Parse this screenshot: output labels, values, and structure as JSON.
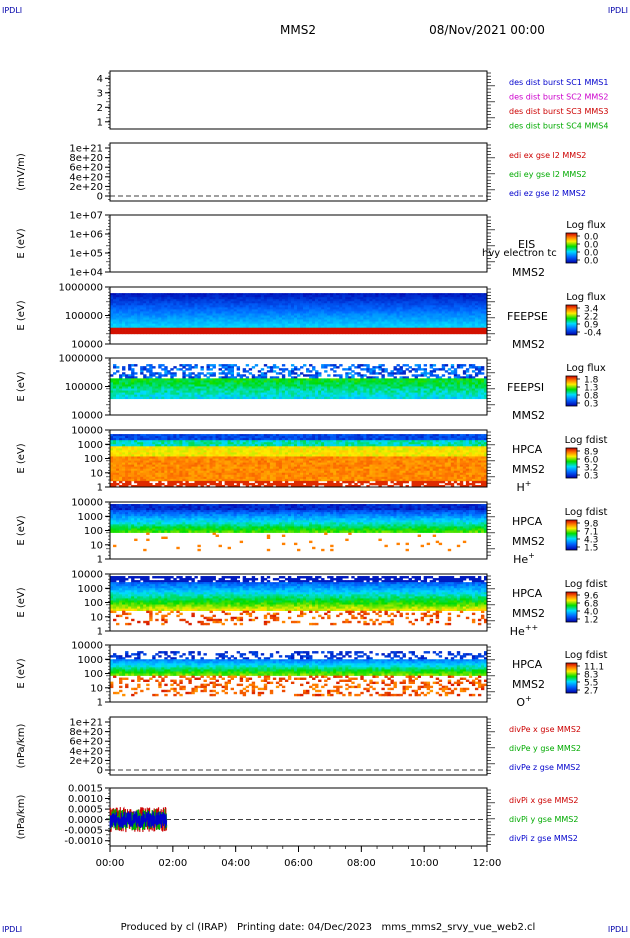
{
  "corner_marks": {
    "top_left": "IPDLI",
    "top_right": "IPDLI",
    "bottom_left": "IPDLI",
    "bottom_right": "IPDLI"
  },
  "header": {
    "spacecraft": "MMS2",
    "datetime": "08/Nov/2021 00:00"
  },
  "footer": {
    "text": "Produced by cl (IRAP)   Printing date: 04/Dec/2023   mms_mms2_srvy_vue_web2.cl"
  },
  "colors": {
    "blue": "#0000cc",
    "magenta": "#cc00cc",
    "red": "#cc0000",
    "green": "#00aa00",
    "dark_blue": "#0000aa"
  },
  "chart_data": [
    {
      "id": "p1",
      "type": "line",
      "ylabel": "",
      "yticks": [
        "1",
        "2",
        "3",
        "4"
      ],
      "ylim": [
        0.5,
        4.5
      ],
      "legend": [
        {
          "text": "des dist burst SC1 MMS1",
          "color": "#0000cc"
        },
        {
          "text": "des dist burst SC2 MMS2",
          "color": "#cc00cc"
        },
        {
          "text": "des dist burst SC3 MMS3",
          "color": "#cc0000"
        },
        {
          "text": "des dist burst SC4 MMS4",
          "color": "#00aa00"
        }
      ],
      "series": []
    },
    {
      "id": "p2",
      "type": "line",
      "ylabel": "(mV/m)",
      "yticks": [
        "1e+21",
        "8e+20",
        "6e+20",
        "4e+20",
        "2e+20",
        "0"
      ],
      "zero_line": true,
      "legend": [
        {
          "text": "edi ex gse l2 MMS2",
          "color": "#cc0000"
        },
        {
          "text": "edi ey gse l2 MMS2",
          "color": "#00aa00"
        },
        {
          "text": "edi ez gse l2 MMS2",
          "color": "#0000cc"
        }
      ],
      "series": []
    },
    {
      "id": "p3",
      "type": "heatmap",
      "ylabel": "E (eV)",
      "yticks": [
        "1e+07",
        "1e+06",
        "1e+05",
        "1e+04"
      ],
      "scale": "log",
      "right_label": [
        "EIS",
        "MMS2"
      ],
      "overlap_text": "hvy electron tc",
      "colorbar": {
        "title": "Log flux",
        "ticks": [
          "0.0",
          "0.0",
          "0.0",
          "0.0"
        ]
      },
      "spectrum": "empty"
    },
    {
      "id": "p4",
      "type": "heatmap",
      "ylabel": "E (eV)",
      "yticks": [
        "1000000",
        "100000",
        "10000"
      ],
      "scale": "log",
      "right_label": [
        "FEEPSE",
        "MMS2"
      ],
      "colorbar": {
        "title": "Log flux",
        "ticks": [
          "3.4",
          "2.2",
          "0.9",
          "-0.4"
        ]
      },
      "spectrum": "feepse"
    },
    {
      "id": "p5",
      "type": "heatmap",
      "ylabel": "E (eV)",
      "yticks": [
        "1000000",
        "100000",
        "10000"
      ],
      "scale": "log",
      "right_label": [
        "FEEPSI",
        "MMS2"
      ],
      "colorbar": {
        "title": "Log flux",
        "ticks": [
          "1.8",
          "1.3",
          "0.8",
          "0.3"
        ]
      },
      "spectrum": "feepsi"
    },
    {
      "id": "p6",
      "type": "heatmap",
      "ylabel": "E (eV)",
      "yticks": [
        "10000",
        "1000",
        "100",
        "10",
        "1"
      ],
      "scale": "log",
      "right_label": [
        "HPCA",
        "MMS2"
      ],
      "species": "H",
      "species_sup": "+",
      "colorbar": {
        "title": "Log fdist",
        "ticks": [
          "8.9",
          "6.0",
          "3.2",
          "0.3"
        ]
      },
      "spectrum": "hplus"
    },
    {
      "id": "p7",
      "type": "heatmap",
      "ylabel": "E (eV)",
      "yticks": [
        "10000",
        "1000",
        "100",
        "10",
        "1"
      ],
      "scale": "log",
      "right_label": [
        "HPCA",
        "MMS2"
      ],
      "species": "He",
      "species_sup": "+",
      "colorbar": {
        "title": "Log fdist",
        "ticks": [
          "9.8",
          "7.1",
          "4.3",
          "1.5"
        ]
      },
      "spectrum": "heplus"
    },
    {
      "id": "p8",
      "type": "heatmap",
      "ylabel": "E (eV)",
      "yticks": [
        "10000",
        "1000",
        "100",
        "10",
        "1"
      ],
      "scale": "log",
      "right_label": [
        "HPCA",
        "MMS2"
      ],
      "species": "He",
      "species_sup": "++",
      "colorbar": {
        "title": "Log fdist",
        "ticks": [
          "9.6",
          "6.8",
          "4.0",
          "1.2"
        ]
      },
      "spectrum": "heplusplus"
    },
    {
      "id": "p9",
      "type": "heatmap",
      "ylabel": "E (eV)",
      "yticks": [
        "10000",
        "1000",
        "100",
        "10",
        "1"
      ],
      "scale": "log",
      "right_label": [
        "HPCA",
        "MMS2"
      ],
      "species": "O",
      "species_sup": "+",
      "colorbar": {
        "title": "Log fdist",
        "ticks": [
          "11.1",
          "8.3",
          "5.5",
          "2.7"
        ]
      },
      "spectrum": "oplus"
    },
    {
      "id": "p10",
      "type": "line",
      "ylabel": "(nPa/km)",
      "yticks": [
        "1e+21",
        "8e+20",
        "6e+20",
        "4e+20",
        "2e+20",
        "0"
      ],
      "zero_line": true,
      "legend": [
        {
          "text": "divPe x gse MMS2",
          "color": "#cc0000"
        },
        {
          "text": "divPe y gse MMS2",
          "color": "#00aa00"
        },
        {
          "text": "divPe z gse MMS2",
          "color": "#0000cc"
        }
      ],
      "series": []
    },
    {
      "id": "p11",
      "type": "line",
      "ylabel": "(nPa/km)",
      "yticks": [
        "0.0015",
        "0.0010",
        "0.0005",
        "0.0000",
        "-0.0005",
        "-0.0010"
      ],
      "ylim": [
        -0.00125,
        0.0015
      ],
      "zero_line": true,
      "legend": [
        {
          "text": "divPi x gse MMS2",
          "color": "#cc0000"
        },
        {
          "text": "divPi y gse MMS2",
          "color": "#00aa00"
        },
        {
          "text": "divPi z gse MMS2",
          "color": "#0000cc"
        }
      ],
      "series_extent_hours": [
        0,
        1.8
      ],
      "series": [
        {
          "name": "divPi x gse MMS2",
          "color": "#cc0000",
          "amplitude": 0.0006
        },
        {
          "name": "divPi y gse MMS2",
          "color": "#00aa00",
          "amplitude": 0.0005
        },
        {
          "name": "divPi z gse MMS2",
          "color": "#0000cc",
          "amplitude": 0.0004
        }
      ]
    }
  ],
  "xaxis": {
    "ticks": [
      "00:00",
      "02:00",
      "04:00",
      "06:00",
      "08:00",
      "10:00",
      "12:00"
    ],
    "range_hours": [
      0,
      12
    ]
  }
}
